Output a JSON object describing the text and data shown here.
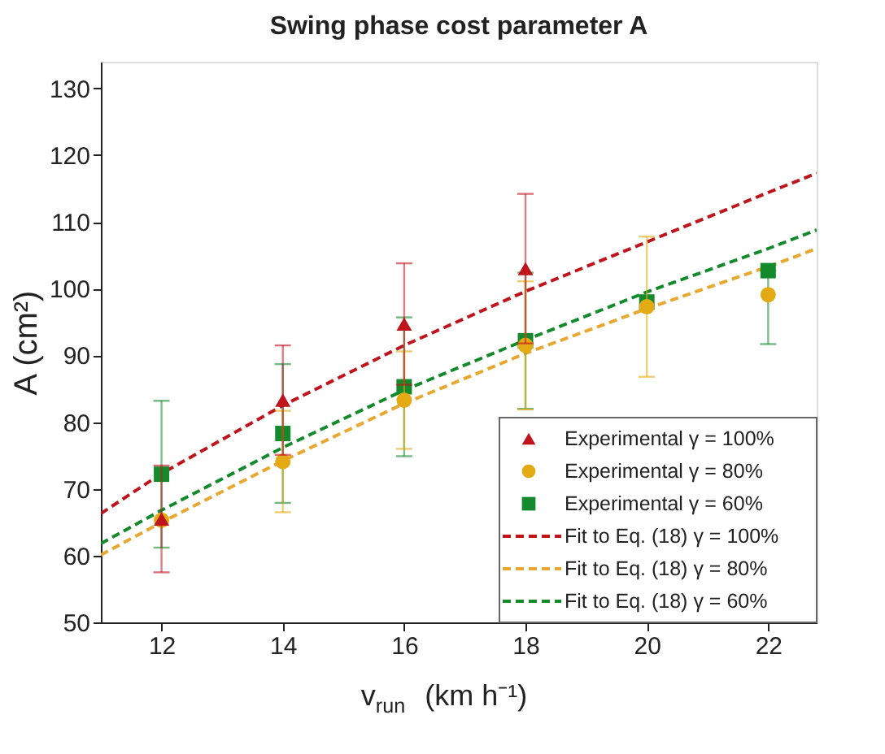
{
  "chart_data": {
    "type": "scatter",
    "title": "Swing phase cost parameter A",
    "xlabel": "v$_{run}$ (km h⁻¹)",
    "ylabel": "A (cm²)",
    "xlim": [
      11,
      22.8
    ],
    "xticks": [
      12,
      14,
      16,
      18,
      20,
      22
    ],
    "ylim": [
      50,
      134
    ],
    "yticks": [
      50,
      60,
      70,
      80,
      90,
      100,
      110,
      120,
      130
    ],
    "grid": false,
    "legend": "bottom right",
    "series": [
      {
        "name": "Experimental γ = 100%",
        "marker": "triangle",
        "color": "#c0141c",
        "x": [
          12,
          14,
          16,
          18
        ],
        "values": [
          65.5,
          83.3,
          94.7,
          103.0
        ],
        "errors": [
          8,
          8.2,
          9.1,
          11.2
        ]
      },
      {
        "name": "Experimental γ =   80%",
        "marker": "circle",
        "color": "#e3aa14",
        "x": [
          12,
          14,
          16,
          18,
          20,
          22
        ],
        "values": [
          65.3,
          74.1,
          83.3,
          91.5,
          97.3,
          99.1
        ],
        "errors": [
          null,
          7.6,
          7.3,
          9.6,
          10.5,
          null
        ]
      },
      {
        "name": "Experimental γ =   60%",
        "marker": "square",
        "color": "#138a2c",
        "x": [
          12,
          14,
          16,
          18,
          20,
          22
        ],
        "values": [
          72.2,
          78.3,
          85.3,
          92.2,
          98.0,
          102.7
        ],
        "errors": [
          11,
          10.4,
          10.4,
          10.2,
          null,
          [
            91.7,
            102.7
          ]
        ]
      },
      {
        "name": "Fit to Eq. (18) γ = 100%",
        "type": "line",
        "line_style": "dashed",
        "color": "#c0141c",
        "x": [
          11,
          12,
          14,
          16,
          18,
          20,
          22,
          22.8
        ],
        "values": [
          66.3,
          72.3,
          82.5,
          91.5,
          99.6,
          107.0,
          114.4,
          117.3
        ]
      },
      {
        "name": "Fit to Eq. (18) γ =   80%",
        "type": "line",
        "line_style": "dashed",
        "color": "#e8a830",
        "x": [
          11,
          12,
          14,
          16,
          18,
          20,
          22,
          22.8
        ],
        "values": [
          60.1,
          65.0,
          74.2,
          82.8,
          90.3,
          97.0,
          103.3,
          106.0
        ]
      },
      {
        "name": "Fit to Eq. (18) γ =   60%",
        "type": "line",
        "line_style": "dashed",
        "color": "#138a2c",
        "x": [
          11,
          12,
          14,
          16,
          18,
          20,
          22,
          22.8
        ],
        "values": [
          61.8,
          66.8,
          76.2,
          84.8,
          92.3,
          99.5,
          106.0,
          108.8
        ]
      }
    ]
  }
}
